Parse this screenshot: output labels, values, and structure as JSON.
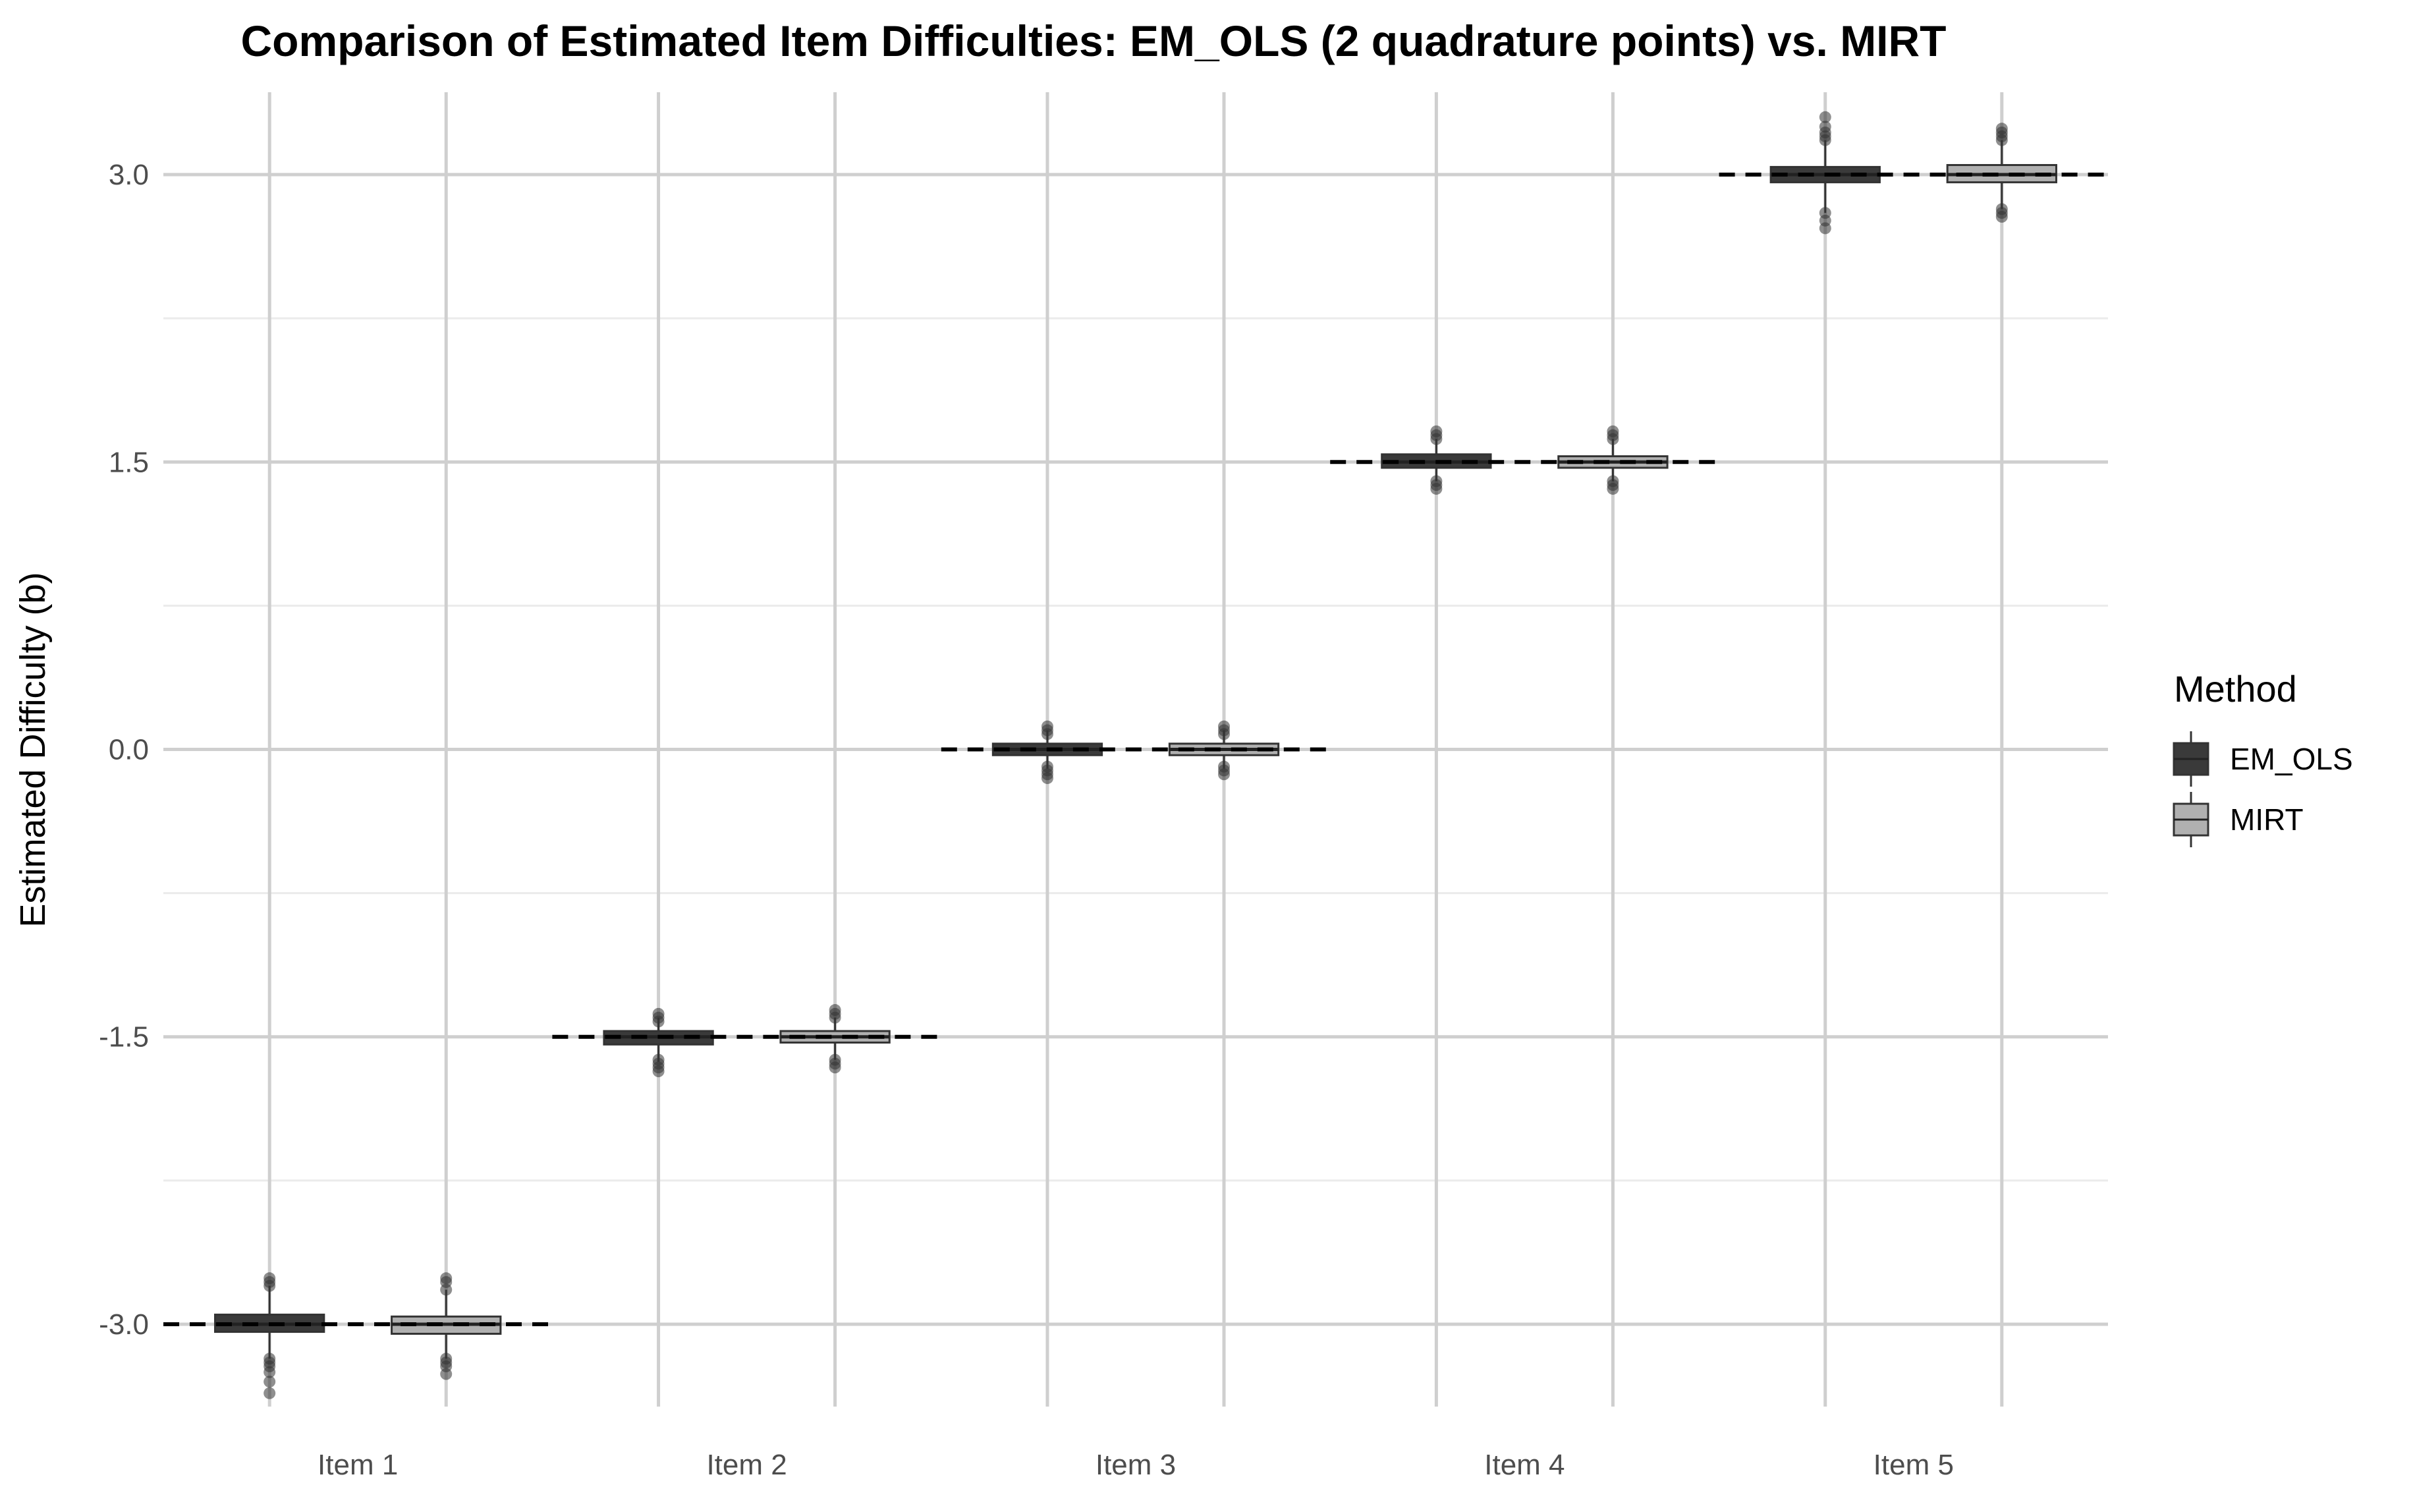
{
  "chart_data": {
    "type": "box",
    "title": "Comparison of Estimated Item Difficulties: EM_OLS (2 quadrature points) vs. MIRT",
    "xlabel": "",
    "ylabel": "Estimated Difficulty (b)",
    "categories": [
      "Item 1",
      "Item 2",
      "Item 3",
      "Item 4",
      "Item 5"
    ],
    "yticks": [
      -3.0,
      -1.5,
      0.0,
      1.5,
      3.0
    ],
    "ytick_labels": [
      "-3.0",
      "-1.5",
      "0.0",
      "1.5",
      "3.0"
    ],
    "ylim": [
      -3.43,
      3.43
    ],
    "grid": true,
    "legend": {
      "title": "Method",
      "position": "right"
    },
    "true_values": [
      -3.0,
      -1.5,
      0.0,
      1.5,
      3.0
    ],
    "series": [
      {
        "name": "EM_OLS",
        "color": "#3a3a3a",
        "boxes": [
          {
            "min": -3.18,
            "q1": -3.04,
            "median": -3.0,
            "q3": -2.95,
            "max": -2.8,
            "outliers": [
              -2.76,
              -2.78,
              -2.8,
              -3.18,
              -3.2,
              -3.22,
              -3.25,
              -3.3,
              -3.36
            ]
          },
          {
            "min": -1.63,
            "q1": -1.54,
            "median": -1.5,
            "q3": -1.47,
            "max": -1.4,
            "outliers": [
              -1.38,
              -1.4,
              -1.42,
              -1.62,
              -1.64,
              -1.66,
              -1.68
            ]
          },
          {
            "min": -0.1,
            "q1": -0.03,
            "median": 0.0,
            "q3": 0.03,
            "max": 0.1,
            "outliers": [
              0.08,
              0.1,
              0.12,
              -0.09,
              -0.11,
              -0.13,
              -0.15
            ]
          },
          {
            "min": 1.4,
            "q1": 1.47,
            "median": 1.5,
            "q3": 1.54,
            "max": 1.62,
            "outliers": [
              1.62,
              1.64,
              1.66,
              1.4,
              1.38,
              1.36
            ]
          },
          {
            "min": 2.8,
            "q1": 2.96,
            "median": 3.0,
            "q3": 3.04,
            "max": 3.18,
            "outliers": [
              3.18,
              3.2,
              3.22,
              3.25,
              3.3,
              2.8,
              2.76,
              2.72
            ]
          }
        ]
      },
      {
        "name": "MIRT",
        "color": "#b0b0b0",
        "boxes": [
          {
            "min": -3.18,
            "q1": -3.05,
            "median": -3.0,
            "q3": -2.96,
            "max": -2.82,
            "outliers": [
              -2.76,
              -2.78,
              -2.82,
              -3.18,
              -3.2,
              -3.22,
              -3.26
            ]
          },
          {
            "min": -1.62,
            "q1": -1.53,
            "median": -1.5,
            "q3": -1.47,
            "max": -1.4,
            "outliers": [
              -1.36,
              -1.38,
              -1.4,
              -1.62,
              -1.64,
              -1.66
            ]
          },
          {
            "min": -0.1,
            "q1": -0.03,
            "median": 0.0,
            "q3": 0.03,
            "max": 0.1,
            "outliers": [
              0.08,
              0.1,
              0.12,
              -0.09,
              -0.11,
              -0.13
            ]
          },
          {
            "min": 1.4,
            "q1": 1.47,
            "median": 1.5,
            "q3": 1.53,
            "max": 1.62,
            "outliers": [
              1.62,
              1.64,
              1.66,
              1.4,
              1.38,
              1.36
            ]
          },
          {
            "min": 2.82,
            "q1": 2.96,
            "median": 3.0,
            "q3": 3.05,
            "max": 3.18,
            "outliers": [
              3.18,
              3.2,
              3.22,
              3.24,
              2.82,
              2.8,
              2.78
            ]
          }
        ]
      }
    ]
  }
}
